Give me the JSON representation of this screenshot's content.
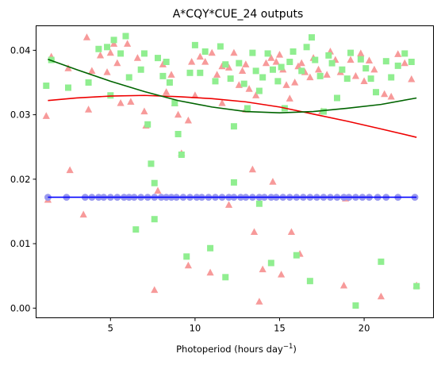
{
  "chart_data": {
    "type": "scatter",
    "title": "A*CQY*CUE_24 outputs",
    "xlabel_main": "Photoperiod (hours day",
    "xlabel_sup": "−1",
    "xlabel_end": ")",
    "ylabel": "",
    "xlim": [
      0.6,
      24.1
    ],
    "ylim": [
      -0.0015,
      0.0438
    ],
    "x_ticks": [
      5,
      10,
      15,
      20
    ],
    "y_ticks": [
      0.0,
      0.01,
      0.02,
      0.03,
      0.04
    ],
    "y_tick_labels": [
      "0.00",
      "0.01",
      "0.02",
      "0.03",
      "0.04"
    ],
    "grid": false,
    "colors": {
      "triangles": "#f79a9a",
      "squares": "#90ee90",
      "circles": "#9999ee",
      "blue_line": "#0000ff",
      "red_line": "#ee0000",
      "green_line": "#006400"
    },
    "series": [
      {
        "marker": "triangle",
        "points": [
          [
            1.2,
            0.0298
          ],
          [
            1.3,
            0.0168
          ],
          [
            1.5,
            0.039
          ],
          [
            2.5,
            0.0372
          ],
          [
            2.6,
            0.0214
          ],
          [
            3.4,
            0.0145
          ],
          [
            3.6,
            0.042
          ],
          [
            3.7,
            0.0308
          ],
          [
            3.9,
            0.0368
          ],
          [
            4.4,
            0.0392
          ],
          [
            4.8,
            0.0366
          ],
          [
            5.0,
            0.0396
          ],
          [
            5.2,
            0.041
          ],
          [
            5.4,
            0.038
          ],
          [
            5.6,
            0.0318
          ],
          [
            6.0,
            0.041
          ],
          [
            6.2,
            0.032
          ],
          [
            6.6,
            0.0388
          ],
          [
            7.0,
            0.0305
          ],
          [
            7.1,
            0.0283
          ],
          [
            7.6,
            0.0028
          ],
          [
            7.8,
            0.0182
          ],
          [
            8.1,
            0.0378
          ],
          [
            8.3,
            0.0335
          ],
          [
            8.6,
            0.0362
          ],
          [
            8.8,
            0.0318
          ],
          [
            9.0,
            0.03
          ],
          [
            9.2,
            0.024
          ],
          [
            9.6,
            0.0291
          ],
          [
            9.8,
            0.0382
          ],
          [
            10.0,
            0.033
          ],
          [
            10.3,
            0.039
          ],
          [
            10.6,
            0.0382
          ],
          [
            10.9,
            0.0055
          ],
          [
            11.0,
            0.0396
          ],
          [
            11.3,
            0.0362
          ],
          [
            11.6,
            0.0375
          ],
          [
            12.0,
            0.016
          ],
          [
            12.0,
            0.0373
          ],
          [
            12.3,
            0.0396
          ],
          [
            12.6,
            0.0346
          ],
          [
            12.8,
            0.0368
          ],
          [
            13.0,
            0.0378
          ],
          [
            13.2,
            0.034
          ],
          [
            13.4,
            0.0215
          ],
          [
            13.5,
            0.0118
          ],
          [
            13.6,
            0.033
          ],
          [
            13.8,
            0.001
          ],
          [
            14.0,
            0.006
          ],
          [
            14.2,
            0.038
          ],
          [
            14.5,
            0.0388
          ],
          [
            14.8,
            0.0382
          ],
          [
            15.0,
            0.0393
          ],
          [
            15.2,
            0.037
          ],
          [
            15.4,
            0.0346
          ],
          [
            15.6,
            0.0325
          ],
          [
            15.7,
            0.0118
          ],
          [
            15.9,
            0.035
          ],
          [
            16.1,
            0.0375
          ],
          [
            16.3,
            0.038
          ],
          [
            16.5,
            0.0366
          ],
          [
            16.8,
            0.0358
          ],
          [
            17.0,
            0.0388
          ],
          [
            17.3,
            0.037
          ],
          [
            17.5,
            0.0305
          ],
          [
            17.8,
            0.0362
          ],
          [
            18.0,
            0.0398
          ],
          [
            18.3,
            0.0385
          ],
          [
            18.6,
            0.0366
          ],
          [
            18.9,
            0.017
          ],
          [
            19.2,
            0.0385
          ],
          [
            19.5,
            0.036
          ],
          [
            19.8,
            0.0395
          ],
          [
            20.0,
            0.0352
          ],
          [
            20.3,
            0.0384
          ],
          [
            20.6,
            0.037
          ],
          [
            21.0,
            0.0018
          ],
          [
            21.2,
            0.0332
          ],
          [
            21.6,
            0.0328
          ],
          [
            22.0,
            0.0394
          ],
          [
            22.4,
            0.038
          ],
          [
            22.8,
            0.0355
          ],
          [
            23.1,
            0.0035
          ],
          [
            13.0,
            0.0308
          ],
          [
            14.6,
            0.0196
          ],
          [
            16.2,
            0.0084
          ],
          [
            18.8,
            0.0035
          ],
          [
            11.6,
            0.0318
          ],
          [
            9.6,
            0.0066
          ],
          [
            15.1,
            0.0052
          ]
        ]
      },
      {
        "marker": "square",
        "points": [
          [
            1.2,
            0.0345
          ],
          [
            1.5,
            0.0385
          ],
          [
            2.5,
            0.0342
          ],
          [
            3.7,
            0.035
          ],
          [
            4.3,
            0.0402
          ],
          [
            4.8,
            0.0405
          ],
          [
            5.0,
            0.033
          ],
          [
            5.2,
            0.0416
          ],
          [
            5.6,
            0.0395
          ],
          [
            5.9,
            0.0422
          ],
          [
            6.1,
            0.0358
          ],
          [
            6.5,
            0.0122
          ],
          [
            6.8,
            0.037
          ],
          [
            7.0,
            0.0395
          ],
          [
            7.2,
            0.0285
          ],
          [
            7.4,
            0.0224
          ],
          [
            7.6,
            0.0194
          ],
          [
            7.8,
            0.0388
          ],
          [
            8.1,
            0.036
          ],
          [
            8.3,
            0.0382
          ],
          [
            8.5,
            0.035
          ],
          [
            8.8,
            0.0318
          ],
          [
            9.0,
            0.027
          ],
          [
            9.2,
            0.0238
          ],
          [
            9.5,
            0.008
          ],
          [
            9.7,
            0.0365
          ],
          [
            10.0,
            0.0408
          ],
          [
            10.3,
            0.0365
          ],
          [
            10.6,
            0.0398
          ],
          [
            10.9,
            0.0093
          ],
          [
            11.2,
            0.0352
          ],
          [
            11.5,
            0.0406
          ],
          [
            11.8,
            0.0378
          ],
          [
            12.1,
            0.0356
          ],
          [
            12.3,
            0.0282
          ],
          [
            12.6,
            0.038
          ],
          [
            12.9,
            0.0348
          ],
          [
            13.1,
            0.031
          ],
          [
            13.4,
            0.0396
          ],
          [
            13.6,
            0.0368
          ],
          [
            13.8,
            0.0337
          ],
          [
            14.0,
            0.0358
          ],
          [
            14.3,
            0.0395
          ],
          [
            14.6,
            0.037
          ],
          [
            14.9,
            0.0352
          ],
          [
            15.1,
            0.0374
          ],
          [
            15.3,
            0.031
          ],
          [
            15.6,
            0.0382
          ],
          [
            15.8,
            0.0398
          ],
          [
            16.0,
            0.0082
          ],
          [
            16.3,
            0.0368
          ],
          [
            16.6,
            0.0405
          ],
          [
            16.9,
            0.042
          ],
          [
            17.1,
            0.0385
          ],
          [
            17.4,
            0.036
          ],
          [
            17.6,
            0.0305
          ],
          [
            17.9,
            0.0392
          ],
          [
            18.1,
            0.038
          ],
          [
            18.4,
            0.0326
          ],
          [
            18.7,
            0.037
          ],
          [
            19.0,
            0.0356
          ],
          [
            19.2,
            0.0396
          ],
          [
            19.5,
            0.0004
          ],
          [
            19.8,
            0.0386
          ],
          [
            20.1,
            0.0372
          ],
          [
            20.4,
            0.0356
          ],
          [
            20.7,
            0.0335
          ],
          [
            21.0,
            0.0072
          ],
          [
            21.3,
            0.0383
          ],
          [
            21.6,
            0.0358
          ],
          [
            22.0,
            0.0376
          ],
          [
            22.4,
            0.0395
          ],
          [
            22.8,
            0.0382
          ],
          [
            23.1,
            0.0034
          ],
          [
            7.6,
            0.0138
          ],
          [
            11.8,
            0.0048
          ],
          [
            12.3,
            0.0195
          ],
          [
            13.8,
            0.0162
          ],
          [
            14.5,
            0.007
          ],
          [
            16.8,
            0.0042
          ]
        ]
      },
      {
        "marker": "circle",
        "points": [
          [
            1.3,
            0.0172
          ],
          [
            2.4,
            0.0172
          ],
          [
            3.5,
            0.0172
          ],
          [
            3.9,
            0.0172
          ],
          [
            4.3,
            0.0172
          ],
          [
            4.6,
            0.0172
          ],
          [
            5.0,
            0.0172
          ],
          [
            5.4,
            0.0172
          ],
          [
            5.8,
            0.0172
          ],
          [
            6.1,
            0.0172
          ],
          [
            6.4,
            0.0172
          ],
          [
            6.8,
            0.0172
          ],
          [
            7.2,
            0.0172
          ],
          [
            7.6,
            0.0172
          ],
          [
            8.0,
            0.0172
          ],
          [
            8.3,
            0.0172
          ],
          [
            8.6,
            0.0172
          ],
          [
            8.9,
            0.0172
          ],
          [
            9.3,
            0.0172
          ],
          [
            9.7,
            0.0172
          ],
          [
            10.1,
            0.0172
          ],
          [
            10.4,
            0.0172
          ],
          [
            10.8,
            0.0172
          ],
          [
            11.2,
            0.0172
          ],
          [
            11.6,
            0.0172
          ],
          [
            12.0,
            0.0172
          ],
          [
            12.3,
            0.0172
          ],
          [
            12.7,
            0.0172
          ],
          [
            13.0,
            0.0172
          ],
          [
            13.4,
            0.0172
          ],
          [
            13.8,
            0.0172
          ],
          [
            14.1,
            0.0172
          ],
          [
            14.5,
            0.0172
          ],
          [
            14.8,
            0.0172
          ],
          [
            15.2,
            0.0172
          ],
          [
            15.6,
            0.0172
          ],
          [
            16.0,
            0.0172
          ],
          [
            16.4,
            0.0172
          ],
          [
            16.8,
            0.0172
          ],
          [
            17.2,
            0.0172
          ],
          [
            17.6,
            0.0172
          ],
          [
            18.0,
            0.0172
          ],
          [
            18.4,
            0.0172
          ],
          [
            18.8,
            0.0172
          ],
          [
            19.1,
            0.0172
          ],
          [
            19.5,
            0.0172
          ],
          [
            19.9,
            0.0172
          ],
          [
            20.3,
            0.0172
          ],
          [
            20.8,
            0.0172
          ],
          [
            21.3,
            0.0172
          ],
          [
            22.0,
            0.0172
          ],
          [
            23.0,
            0.0172
          ]
        ]
      }
    ],
    "trend_lines": [
      {
        "color_key": "blue_line",
        "points": [
          [
            1.3,
            0.0172
          ],
          [
            23.1,
            0.0172
          ]
        ]
      },
      {
        "color_key": "red_line",
        "points": [
          [
            1.3,
            0.0322
          ],
          [
            3,
            0.0326
          ],
          [
            5,
            0.0329
          ],
          [
            7,
            0.033
          ],
          [
            9,
            0.0328
          ],
          [
            11,
            0.0325
          ],
          [
            13,
            0.032
          ],
          [
            15,
            0.0312
          ],
          [
            17,
            0.0301
          ],
          [
            19,
            0.029
          ],
          [
            21,
            0.0278
          ],
          [
            23.1,
            0.0265
          ]
        ]
      },
      {
        "color_key": "green_line",
        "points": [
          [
            1.3,
            0.0386
          ],
          [
            3,
            0.037
          ],
          [
            5,
            0.0352
          ],
          [
            7,
            0.0336
          ],
          [
            9,
            0.0322
          ],
          [
            11,
            0.0312
          ],
          [
            13,
            0.0305
          ],
          [
            15,
            0.0303
          ],
          [
            17,
            0.0305
          ],
          [
            19,
            0.031
          ],
          [
            21,
            0.0316
          ],
          [
            23.1,
            0.0326
          ]
        ]
      }
    ]
  }
}
